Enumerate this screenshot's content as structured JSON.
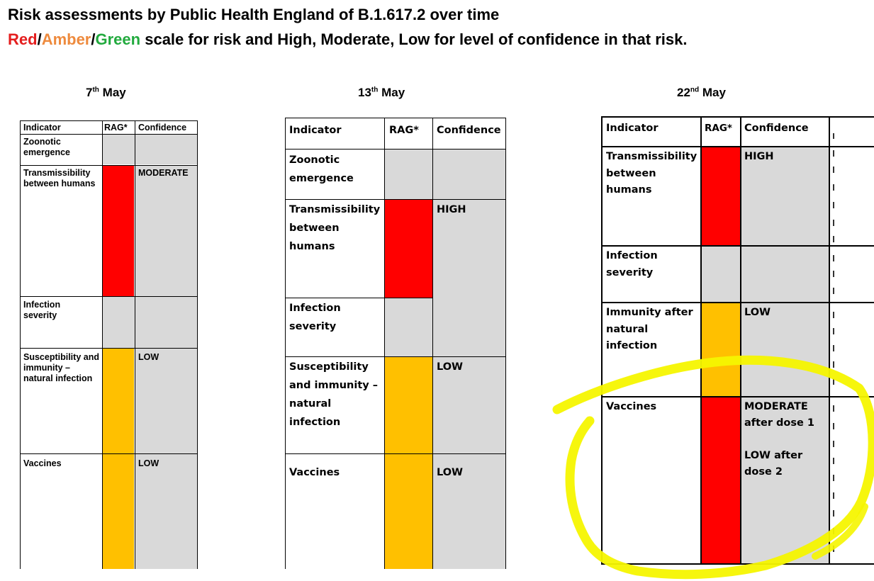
{
  "header": {
    "line1": "Risk assessments by Public Health England of B.1.617.2 over time",
    "scale_red": "Red",
    "slash": "/",
    "scale_amber": "Amber",
    "scale_green": "Green",
    "line2_rest": "scale for risk and High, Moderate, Low for level of confidence in that risk."
  },
  "rag_colors": {
    "red": "#ff0000",
    "amber": "#ffc000",
    "grey": "#d9d9d9"
  },
  "assessments": [
    {
      "date_day": "7",
      "date_suffix": "th",
      "date_month": "May",
      "columns": [
        "Indicator",
        "RAG*",
        "Confidence"
      ],
      "rows": [
        {
          "indicator": "Zoonotic emergence",
          "rag": "grey",
          "confidence": ""
        },
        {
          "indicator": "Transmissibility between humans",
          "rag": "red",
          "confidence": "MODERATE"
        },
        {
          "indicator": "Infection severity",
          "rag": "grey",
          "confidence": ""
        },
        {
          "indicator": "Susceptibility and immunity – natural infection",
          "rag": "amber",
          "confidence": "LOW"
        },
        {
          "indicator": "Vaccines",
          "rag": "amber",
          "confidence": "LOW"
        }
      ]
    },
    {
      "date_day": "13",
      "date_suffix": "th",
      "date_month": "May",
      "columns": [
        "Indicator",
        "RAG*",
        "Confidence"
      ],
      "rows": [
        {
          "indicator": "Zoonotic emergence",
          "rag": "grey",
          "confidence": ""
        },
        {
          "indicator": "Transmissibility between humans",
          "rag": "red",
          "confidence": "HIGH"
        },
        {
          "indicator": "Infection severity",
          "rag": "grey",
          "confidence": ""
        },
        {
          "indicator": "Susceptibility and immunity – natural infection",
          "rag": "amber",
          "confidence": "LOW"
        },
        {
          "indicator": "Vaccines",
          "rag": "amber",
          "confidence": "LOW"
        }
      ]
    },
    {
      "date_day": "22",
      "date_suffix": "nd",
      "date_month": "May",
      "columns": [
        "Indicator",
        "RAG*",
        "Confidence"
      ],
      "rows": [
        {
          "indicator": "Transmissibility between humans",
          "rag": "red",
          "confidence": "HIGH"
        },
        {
          "indicator": "Infection severity",
          "rag": "grey",
          "confidence": ""
        },
        {
          "indicator": "Immunity after natural infection",
          "rag": "amber",
          "confidence": "LOW"
        },
        {
          "indicator": "Vaccines",
          "rag": "red",
          "confidence": "MODERATE after dose 1\n\nLOW after dose 2"
        }
      ]
    }
  ],
  "annotation": {
    "highlight_color": "#f5f500",
    "highlighted_row": "Vaccines"
  }
}
